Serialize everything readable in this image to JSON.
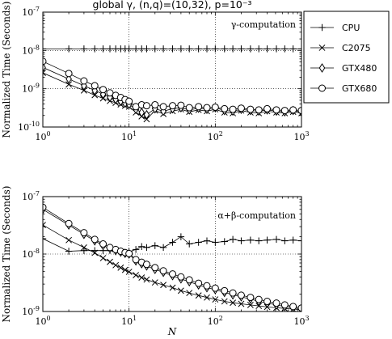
{
  "chart_data": [
    {
      "type": "line",
      "title": "global γ, (n,q)=(10,32), p=10⁻³",
      "annotation": "γ-computation",
      "xlabel": "",
      "ylabel": "Normalized Time (Seconds)",
      "xscale": "log",
      "yscale": "log",
      "xlim": [
        1,
        1000
      ],
      "ylim": [
        1e-10,
        1e-07
      ],
      "x_ticks": [
        {
          "base": "10",
          "exp": "0"
        },
        {
          "base": "10",
          "exp": "1"
        },
        {
          "base": "10",
          "exp": "2"
        },
        {
          "base": "10",
          "exp": "3"
        }
      ],
      "y_ticks": [
        {
          "base": "10",
          "exp": "-10"
        },
        {
          "base": "10",
          "exp": "-9"
        },
        {
          "base": "10",
          "exp": "-8"
        },
        {
          "base": "10",
          "exp": "-7"
        }
      ],
      "grid": "dotted at major ticks",
      "series": [
        {
          "name": "CPU",
          "marker": "plus",
          "x": [
            1,
            2,
            3,
            4,
            5,
            6,
            7,
            8,
            9,
            10,
            12,
            14,
            16,
            20,
            25,
            32,
            40,
            50,
            64,
            80,
            100,
            128,
            160,
            200,
            256,
            320,
            400,
            512,
            640,
            800,
            1000
          ],
          "y": [
            1.1e-08,
            1.1e-08,
            1.1e-08,
            1.1e-08,
            1.1e-08,
            1.1e-08,
            1.1e-08,
            1.1e-08,
            1.1e-08,
            1.1e-08,
            1.1e-08,
            1.1e-08,
            1.1e-08,
            1.1e-08,
            1.1e-08,
            1.1e-08,
            1.1e-08,
            1.1e-08,
            1.1e-08,
            1.1e-08,
            1.1e-08,
            1.1e-08,
            1.1e-08,
            1.1e-08,
            1.1e-08,
            1.1e-08,
            1.1e-08,
            1.1e-08,
            1.1e-08,
            1.1e-08,
            1.1e-08
          ]
        },
        {
          "name": "C2075",
          "marker": "x",
          "x": [
            1,
            2,
            3,
            4,
            5,
            6,
            7,
            8,
            9,
            10,
            12,
            14,
            16,
            20,
            25,
            32,
            40,
            50,
            64,
            80,
            100,
            128,
            160,
            200,
            256,
            320,
            400,
            512,
            640,
            800,
            1000
          ],
          "y": [
            2.6e-09,
            1.3e-09,
            9e-10,
            6.8e-10,
            5.6e-10,
            4.8e-10,
            4.3e-10,
            3.9e-10,
            3.6e-10,
            3.4e-10,
            2.4e-10,
            1.9e-10,
            1.6e-10,
            2.7e-10,
            2.2e-10,
            2.6e-10,
            2.9e-10,
            2.5e-10,
            2.8e-10,
            2.6e-10,
            2.9e-10,
            2.4e-10,
            2.3e-10,
            2.7e-10,
            2.4e-10,
            2.3e-10,
            2.6e-10,
            2.4e-10,
            2.3e-10,
            2.5e-10,
            2.3e-10
          ]
        },
        {
          "name": "GTX480",
          "marker": "thin_diamond",
          "x": [
            1,
            2,
            3,
            4,
            5,
            6,
            7,
            8,
            9,
            10,
            12,
            14,
            16,
            20,
            25,
            32,
            40,
            50,
            64,
            80,
            100,
            128,
            160,
            200,
            256,
            320,
            400,
            512,
            640,
            800,
            1000
          ],
          "y": [
            3.6e-09,
            1.8e-09,
            1.2e-09,
            9e-10,
            7.2e-10,
            6e-10,
            5.3e-10,
            4.7e-10,
            4.2e-10,
            3.9e-10,
            2.9e-10,
            2.4e-10,
            2.1e-10,
            3e-10,
            2.6e-10,
            3e-10,
            3.2e-10,
            2.8e-10,
            3.1e-10,
            2.9e-10,
            3.2e-10,
            2.7e-10,
            2.6e-10,
            2.9e-10,
            2.7e-10,
            2.6e-10,
            2.8e-10,
            2.6e-10,
            2.5e-10,
            2.7e-10,
            2.5e-10
          ]
        },
        {
          "name": "GTX680",
          "marker": "circle",
          "x": [
            1,
            2,
            3,
            4,
            5,
            6,
            7,
            8,
            9,
            10,
            12,
            14,
            16,
            20,
            25,
            32,
            40,
            50,
            64,
            80,
            100,
            128,
            160,
            200,
            256,
            320,
            400,
            512,
            640,
            800,
            1000
          ],
          "y": [
            5.2e-09,
            2.5e-09,
            1.6e-09,
            1.2e-09,
            9.5e-10,
            7.8e-10,
            6.7e-10,
            5.9e-10,
            5.2e-10,
            4.7e-10,
            3.4e-10,
            3.8e-10,
            3.6e-10,
            3.8e-10,
            3.4e-10,
            3.6e-10,
            3.7e-10,
            3.2e-10,
            3.4e-10,
            3.2e-10,
            3.3e-10,
            3e-10,
            2.9e-10,
            3.1e-10,
            2.9e-10,
            2.8e-10,
            3e-10,
            2.8e-10,
            2.7e-10,
            2.8e-10,
            2.7e-10
          ]
        }
      ]
    },
    {
      "type": "line",
      "title": "",
      "annotation": "α+β-computation",
      "xlabel": "N",
      "ylabel": "Normalized Time (Seconds)",
      "xscale": "log",
      "yscale": "log",
      "xlim": [
        1,
        1000
      ],
      "ylim": [
        1e-09,
        1e-07
      ],
      "x_ticks": [
        {
          "base": "10",
          "exp": "0"
        },
        {
          "base": "10",
          "exp": "1"
        },
        {
          "base": "10",
          "exp": "2"
        },
        {
          "base": "10",
          "exp": "3"
        }
      ],
      "y_ticks": [
        {
          "base": "10",
          "exp": "-9"
        },
        {
          "base": "10",
          "exp": "-8"
        },
        {
          "base": "10",
          "exp": "-7"
        }
      ],
      "grid": "dotted at major ticks",
      "series": [
        {
          "name": "CPU",
          "marker": "plus",
          "x": [
            1,
            2,
            3,
            4,
            5,
            6,
            7,
            8,
            9,
            10,
            12,
            14,
            16,
            20,
            25,
            32,
            40,
            50,
            64,
            80,
            100,
            128,
            160,
            200,
            256,
            320,
            400,
            512,
            640,
            800,
            1000
          ],
          "y": [
            1.85e-08,
            1.12e-08,
            1.15e-08,
            1.15e-08,
            1.15e-08,
            1.15e-08,
            1.1e-08,
            1.1e-08,
            1.05e-08,
            1.1e-08,
            1.2e-08,
            1.35e-08,
            1.3e-08,
            1.4e-08,
            1.3e-08,
            1.6e-08,
            2e-08,
            1.5e-08,
            1.6e-08,
            1.7e-08,
            1.6e-08,
            1.65e-08,
            1.8e-08,
            1.7e-08,
            1.75e-08,
            1.7e-08,
            1.75e-08,
            1.8e-08,
            1.7e-08,
            1.75e-08,
            1.7e-08
          ]
        },
        {
          "name": "C2075",
          "marker": "x",
          "x": [
            1,
            2,
            3,
            4,
            5,
            6,
            7,
            8,
            9,
            10,
            12,
            14,
            16,
            20,
            25,
            32,
            40,
            50,
            64,
            80,
            100,
            128,
            160,
            200,
            256,
            320,
            400,
            512,
            640,
            800,
            1000
          ],
          "y": [
            3.2e-08,
            1.75e-08,
            1.3e-08,
            1.05e-08,
            8.5e-09,
            7.3e-09,
            6.4e-09,
            5.8e-09,
            5.3e-09,
            4.9e-09,
            4.3e-09,
            3.9e-09,
            3.6e-09,
            3.2e-09,
            2.9e-09,
            2.6e-09,
            2.3e-09,
            2.1e-09,
            1.9e-09,
            1.75e-09,
            1.62e-09,
            1.5e-09,
            1.42e-09,
            1.36e-09,
            1.3e-09,
            1.25e-09,
            1.2e-09,
            1.16e-09,
            1.13e-09,
            1.1e-09,
            1.08e-09
          ]
        },
        {
          "name": "GTX480",
          "marker": "thin_diamond",
          "x": [
            1,
            2,
            3,
            4,
            5,
            6,
            7,
            8,
            9,
            10,
            12,
            14,
            16,
            20,
            25,
            32,
            40,
            50,
            64,
            80,
            100,
            128,
            160,
            200,
            256,
            320,
            400,
            512,
            640,
            800,
            1000
          ],
          "y": [
            6e-08,
            3.2e-08,
            2.2e-08,
            1.7e-08,
            1.4e-08,
            1.25e-08,
            1.15e-08,
            1.08e-08,
            1.03e-08,
            1e-08,
            7.6e-09,
            6.8e-09,
            6.2e-09,
            5.4e-09,
            4.8e-09,
            4.2e-09,
            3.7e-09,
            3.3e-09,
            2.9e-09,
            2.6e-09,
            2.4e-09,
            2.15e-09,
            1.95e-09,
            1.8e-09,
            1.65e-09,
            1.5e-09,
            1.4e-09,
            1.3e-09,
            1.22e-09,
            1.16e-09,
            1.1e-09
          ]
        },
        {
          "name": "GTX680",
          "marker": "circle",
          "x": [
            1,
            2,
            3,
            4,
            5,
            6,
            7,
            8,
            9,
            10,
            12,
            14,
            16,
            20,
            25,
            32,
            40,
            50,
            64,
            80,
            100,
            128,
            160,
            200,
            256,
            320,
            400,
            512,
            640,
            800,
            1000
          ],
          "y": [
            6.5e-08,
            3.4e-08,
            2.35e-08,
            1.8e-08,
            1.5e-08,
            1.3e-08,
            1.2e-08,
            1.12e-08,
            1.06e-08,
            1.02e-08,
            8e-09,
            7.2e-09,
            6.6e-09,
            5.8e-09,
            5.1e-09,
            4.5e-09,
            4e-09,
            3.55e-09,
            3.1e-09,
            2.8e-09,
            2.55e-09,
            2.3e-09,
            2.1e-09,
            1.92e-09,
            1.76e-09,
            1.62e-09,
            1.5e-09,
            1.4e-09,
            1.3e-09,
            1.22e-09,
            1.15e-09
          ]
        }
      ]
    }
  ],
  "legend": {
    "placement": "right of top plot",
    "entries": [
      {
        "name": "CPU",
        "marker": "plus"
      },
      {
        "name": "C2075",
        "marker": "x"
      },
      {
        "name": "GTX480",
        "marker": "thin_diamond"
      },
      {
        "name": "GTX680",
        "marker": "circle"
      }
    ]
  }
}
